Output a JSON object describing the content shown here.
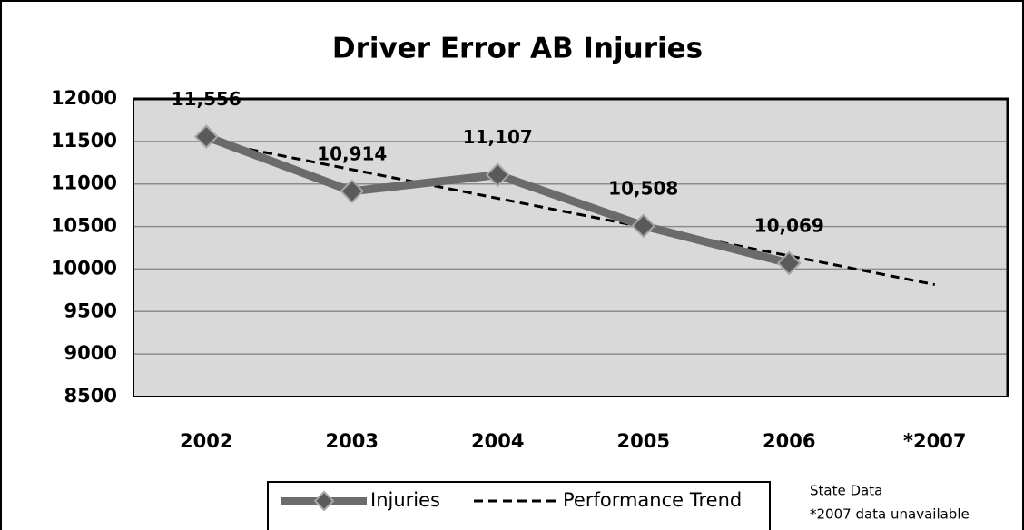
{
  "chart_data": {
    "type": "line",
    "title": "Driver Error AB Injuries",
    "categories": [
      "2002",
      "2003",
      "2004",
      "2005",
      "2006",
      "*2007"
    ],
    "series": [
      {
        "name": "Injuries",
        "color": "#6b6b6b",
        "values": [
          11556,
          10914,
          11107,
          10508,
          10069,
          null
        ],
        "value_labels": [
          "11,556",
          "10,914",
          "11,107",
          "10,508",
          "10,069",
          null
        ]
      },
      {
        "name": "Performance Trend",
        "color": "#000000",
        "dashed": true,
        "values": [
          11507,
          11169,
          10831,
          10493,
          10155,
          9817
        ]
      }
    ],
    "ylim": [
      8500,
      12000
    ],
    "yticks": [
      8500,
      9000,
      9500,
      10000,
      10500,
      11000,
      11500,
      12000
    ],
    "grid": true,
    "legend": "bottom",
    "notes": [
      "State Data",
      "*2007 data unavailable"
    ]
  }
}
